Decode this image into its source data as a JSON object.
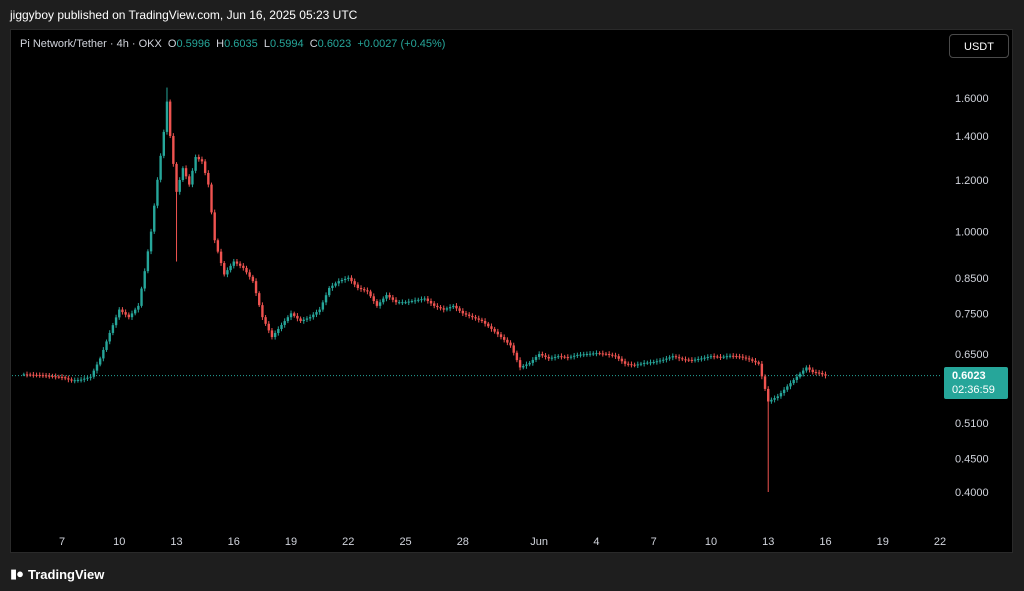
{
  "publisher_line": "jiggyboy published on TradingView.com, Jun 16, 2025 05:23 UTC",
  "legend": {
    "symbol": "Pi Network/Tether · 4h · OKX",
    "open_label": "O",
    "open": "0.5996",
    "high_label": "H",
    "high": "0.6035",
    "low_label": "L",
    "low": "0.5994",
    "close_label": "C",
    "close": "0.6023",
    "change": "+0.0027 (+0.45%)"
  },
  "currency_button": "USDT",
  "last_price": {
    "price": "0.6023",
    "countdown": "02:36:59"
  },
  "footer_brand": "TradingView",
  "colors": {
    "up": "#26a69a",
    "down": "#ef5350",
    "background": "#000000",
    "text": "#d1d4dc"
  },
  "chart_data": {
    "type": "candlestick",
    "scale": "log",
    "y_ticks": [
      1.6,
      1.4,
      1.2,
      1.0,
      0.85,
      0.75,
      0.65,
      0.51,
      0.45,
      0.4
    ],
    "y_tick_labels": [
      "1.6000",
      "1.4000",
      "1.2000",
      "1.0000",
      "0.8500",
      "0.7500",
      "0.6500",
      "0.5100",
      "0.4500",
      "0.4000"
    ],
    "x_ticks": [
      {
        "date": "2025-05-07",
        "label": "7"
      },
      {
        "date": "2025-05-10",
        "label": "10"
      },
      {
        "date": "2025-05-13",
        "label": "13"
      },
      {
        "date": "2025-05-16",
        "label": "16"
      },
      {
        "date": "2025-05-19",
        "label": "19"
      },
      {
        "date": "2025-05-22",
        "label": "22"
      },
      {
        "date": "2025-05-25",
        "label": "25"
      },
      {
        "date": "2025-05-28",
        "label": "28"
      },
      {
        "date": "2025-06-01",
        "label": "Jun"
      },
      {
        "date": "2025-06-04",
        "label": "4"
      },
      {
        "date": "2025-06-07",
        "label": "7"
      },
      {
        "date": "2025-06-10",
        "label": "10"
      },
      {
        "date": "2025-06-13",
        "label": "13"
      },
      {
        "date": "2025-06-16",
        "label": "16"
      },
      {
        "date": "2025-06-19",
        "label": "19"
      },
      {
        "date": "2025-06-22",
        "label": "22"
      }
    ],
    "last_price_line": 0.6023,
    "close_path": [
      [
        "2025-05-05",
        0.605
      ],
      [
        "2025-05-06",
        0.603
      ],
      [
        "2025-05-07",
        0.599
      ],
      [
        "2025-05-07T12:00",
        0.592
      ],
      [
        "2025-05-08",
        0.594
      ],
      [
        "2025-05-08T12:00",
        0.6
      ],
      [
        "2025-05-09",
        0.64
      ],
      [
        "2025-05-09T12:00",
        0.7
      ],
      [
        "2025-05-10",
        0.76
      ],
      [
        "2025-05-10T12:00",
        0.74
      ],
      [
        "2025-05-11",
        0.77
      ],
      [
        "2025-05-11T08:00",
        0.87
      ],
      [
        "2025-05-11T16:00",
        1.0
      ],
      [
        "2025-05-12",
        1.2
      ],
      [
        "2025-05-12T08:00",
        1.42
      ],
      [
        "2025-05-12T12:00",
        1.58
      ],
      [
        "2025-05-12T16:00",
        1.4
      ],
      [
        "2025-05-13",
        1.15
      ],
      [
        "2025-05-13T08:00",
        1.25
      ],
      [
        "2025-05-13T16:00",
        1.18
      ],
      [
        "2025-05-14",
        1.3
      ],
      [
        "2025-05-14T08:00",
        1.28
      ],
      [
        "2025-05-14T16:00",
        1.18
      ],
      [
        "2025-05-15",
        0.97
      ],
      [
        "2025-05-15T12:00",
        0.86
      ],
      [
        "2025-05-16",
        0.9
      ],
      [
        "2025-05-16T12:00",
        0.88
      ],
      [
        "2025-05-17",
        0.84
      ],
      [
        "2025-05-17T12:00",
        0.74
      ],
      [
        "2025-05-18",
        0.69
      ],
      [
        "2025-05-18T12:00",
        0.72
      ],
      [
        "2025-05-19",
        0.75
      ],
      [
        "2025-05-19T12:00",
        0.73
      ],
      [
        "2025-05-20",
        0.74
      ],
      [
        "2025-05-20T12:00",
        0.76
      ],
      [
        "2025-05-21",
        0.82
      ],
      [
        "2025-05-21T12:00",
        0.84
      ],
      [
        "2025-05-22",
        0.85
      ],
      [
        "2025-05-22T12:00",
        0.82
      ],
      [
        "2025-05-23",
        0.81
      ],
      [
        "2025-05-23T12:00",
        0.77
      ],
      [
        "2025-05-24",
        0.8
      ],
      [
        "2025-05-24T12:00",
        0.78
      ],
      [
        "2025-05-25",
        0.78
      ],
      [
        "2025-05-26",
        0.79
      ],
      [
        "2025-05-26T12:00",
        0.77
      ],
      [
        "2025-05-27",
        0.76
      ],
      [
        "2025-05-27T12:00",
        0.77
      ],
      [
        "2025-05-28",
        0.75
      ],
      [
        "2025-05-28T12:00",
        0.74
      ],
      [
        "2025-05-29",
        0.73
      ],
      [
        "2025-05-29T12:00",
        0.71
      ],
      [
        "2025-05-30",
        0.69
      ],
      [
        "2025-05-30T12:00",
        0.67
      ],
      [
        "2025-05-31",
        0.62
      ],
      [
        "2025-05-31T12:00",
        0.63
      ],
      [
        "2025-06-01",
        0.65
      ],
      [
        "2025-06-01T12:00",
        0.64
      ],
      [
        "2025-06-02",
        0.645
      ],
      [
        "2025-06-02T12:00",
        0.642
      ],
      [
        "2025-06-03",
        0.648
      ],
      [
        "2025-06-03T12:00",
        0.65
      ],
      [
        "2025-06-04",
        0.652
      ],
      [
        "2025-06-04T12:00",
        0.65
      ],
      [
        "2025-06-05",
        0.645
      ],
      [
        "2025-06-05T12:00",
        0.628
      ],
      [
        "2025-06-06",
        0.625
      ],
      [
        "2025-06-06T12:00",
        0.63
      ],
      [
        "2025-06-07",
        0.632
      ],
      [
        "2025-06-07T12:00",
        0.637
      ],
      [
        "2025-06-08",
        0.645
      ],
      [
        "2025-06-08T12:00",
        0.638
      ],
      [
        "2025-06-09",
        0.636
      ],
      [
        "2025-06-09T12:00",
        0.64
      ],
      [
        "2025-06-10",
        0.645
      ],
      [
        "2025-06-10T12:00",
        0.643
      ],
      [
        "2025-06-11",
        0.646
      ],
      [
        "2025-06-11T12:00",
        0.644
      ],
      [
        "2025-06-12",
        0.638
      ],
      [
        "2025-06-12T12:00",
        0.628
      ],
      [
        "2025-06-13",
        0.55
      ],
      [
        "2025-06-13T12:00",
        0.56
      ],
      [
        "2025-06-14",
        0.58
      ],
      [
        "2025-06-14T12:00",
        0.6
      ],
      [
        "2025-06-15",
        0.62
      ],
      [
        "2025-06-15T08:00",
        0.61
      ],
      [
        "2025-06-15T16:00",
        0.608
      ],
      [
        "2025-06-16",
        0.6023
      ]
    ],
    "spikes": [
      {
        "date": "2025-05-12T12:00",
        "high": 1.66
      },
      {
        "date": "2025-05-13",
        "low": 0.9
      },
      {
        "date": "2025-06-13",
        "low": 0.4
      }
    ]
  }
}
